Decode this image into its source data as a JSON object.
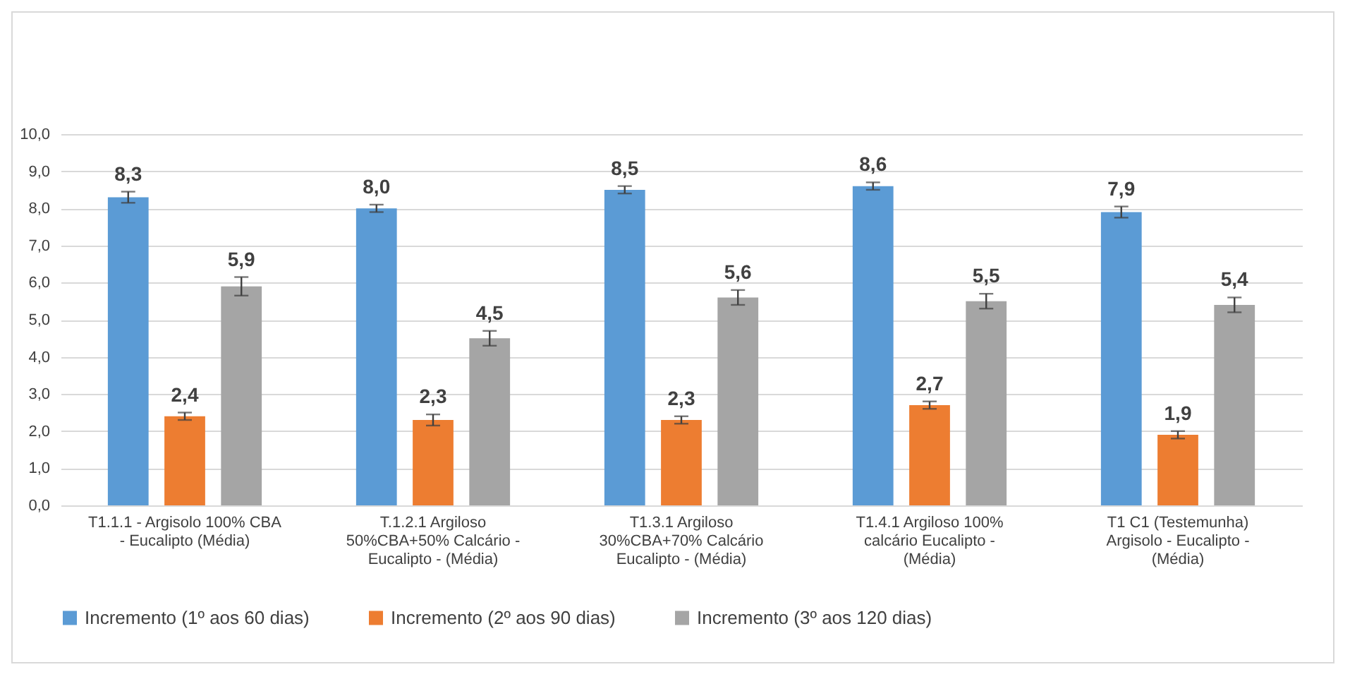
{
  "chart_data": {
    "type": "bar",
    "categories": [
      "T1.1.1 - Argisolo 100% CBA - Eucalipto (Média)",
      "T.1.2.1 Argiloso 50%CBA+50% Calcário - Eucalipto - (Média)",
      "T1.3.1  Argiloso 30%CBA+70% Calcário Eucalipto - (Média)",
      "T1.4.1 Argiloso 100% calcário Eucalipto - (Média)",
      "T1 C1 (Testemunha) Argisolo - Eucalipto - (Média)"
    ],
    "series": [
      {
        "name": "Incremento (1º aos 60 dias)",
        "color": "#5b9bd5",
        "values": [
          8.3,
          8.0,
          8.5,
          8.6,
          7.9
        ],
        "value_labels": [
          "8,3",
          "8,0",
          "8,5",
          "8,6",
          "7,9"
        ],
        "errors": [
          0.15,
          0.1,
          0.1,
          0.1,
          0.15
        ]
      },
      {
        "name": "Incremento (2º aos 90 dias)",
        "color": "#ed7d31",
        "values": [
          2.4,
          2.3,
          2.3,
          2.7,
          1.9
        ],
        "value_labels": [
          "2,4",
          "2,3",
          "2,3",
          "2,7",
          "1,9"
        ],
        "errors": [
          0.1,
          0.15,
          0.1,
          0.1,
          0.1
        ]
      },
      {
        "name": "Incremento (3º aos 120 dias)",
        "color": "#a5a5a5",
        "values": [
          5.9,
          4.5,
          5.6,
          5.5,
          5.4
        ],
        "value_labels": [
          "5,9",
          "4,5",
          "5,6",
          "5,5",
          "5,4"
        ],
        "errors": [
          0.25,
          0.2,
          0.2,
          0.2,
          0.2
        ]
      }
    ],
    "ylim": [
      0,
      10
    ],
    "yticks": [
      {
        "value": 0,
        "label": "0,0"
      },
      {
        "value": 1,
        "label": "1,0"
      },
      {
        "value": 2,
        "label": "2,0"
      },
      {
        "value": 3,
        "label": "3,0"
      },
      {
        "value": 4,
        "label": "4,0"
      },
      {
        "value": 5,
        "label": "5,0"
      },
      {
        "value": 6,
        "label": "6,0"
      },
      {
        "value": 7,
        "label": "7,0"
      },
      {
        "value": 8,
        "label": "8,0"
      },
      {
        "value": 9,
        "label": "9,0"
      },
      {
        "value": 10,
        "label": "10,0"
      }
    ],
    "grid": "y",
    "legend": "bottom"
  }
}
